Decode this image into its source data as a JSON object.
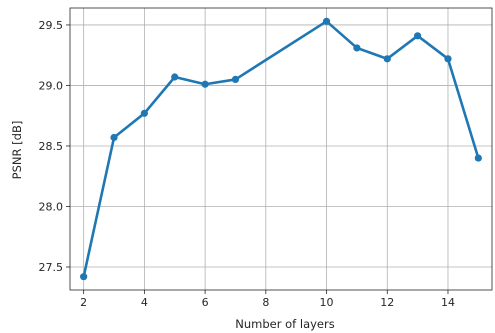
{
  "chart_data": {
    "type": "line",
    "xlabel": "Number of layers",
    "ylabel": "PSNR [dB]",
    "xlim": [
      1.55,
      15.45
    ],
    "ylim": [
      27.31,
      29.64
    ],
    "xticks": [
      2,
      4,
      6,
      8,
      10,
      12,
      14
    ],
    "yticks": [
      27.5,
      28.0,
      28.5,
      29.0,
      29.5
    ],
    "xtick_labels": [
      "2",
      "4",
      "6",
      "8",
      "10",
      "12",
      "14"
    ],
    "ytick_labels": [
      "27.5",
      "28.0",
      "28.5",
      "29.0",
      "29.5"
    ],
    "grid": true,
    "series": [
      {
        "color": "#1f77b4",
        "x": [
          2,
          3,
          4,
          5,
          6,
          7,
          10,
          11,
          12,
          13,
          14,
          15
        ],
        "y": [
          27.42,
          28.57,
          28.77,
          29.07,
          29.01,
          29.05,
          29.53,
          29.31,
          29.22,
          29.41,
          29.22,
          28.4
        ]
      }
    ]
  }
}
